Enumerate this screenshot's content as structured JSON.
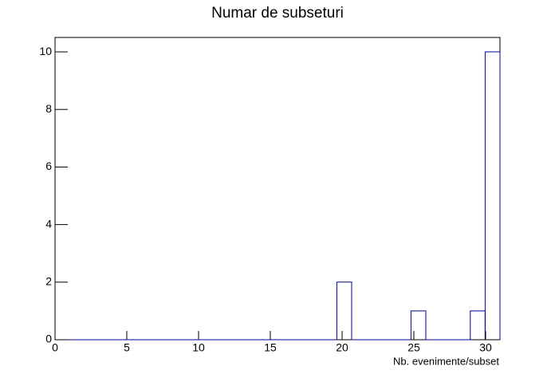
{
  "chart_data": {
    "type": "histogram",
    "title": "Numar de subseturi",
    "x_label": "Nb. evenimente/subset",
    "bins": [
      0,
      1.0333,
      2.0667,
      3.1,
      4.1333,
      5.1667,
      6.2,
      7.2333,
      8.2667,
      9.3,
      10.3333,
      11.3667,
      12.4,
      13.4333,
      14.4667,
      15.5,
      16.5333,
      17.5667,
      18.6,
      19.6333,
      20.6667,
      21.7,
      22.7333,
      23.7667,
      24.8,
      25.8333,
      26.8667,
      27.9,
      28.9333,
      29.9667,
      31
    ],
    "values": [
      0,
      0,
      0,
      0,
      0,
      0,
      0,
      0,
      0,
      0,
      0,
      0,
      0,
      0,
      0,
      0,
      0,
      0,
      0,
      2,
      0,
      0,
      0,
      0,
      1,
      0,
      0,
      0,
      1,
      10
    ],
    "color": "#000099",
    "xlim": [
      0,
      31
    ],
    "xticks": [
      0,
      5,
      10,
      15,
      20,
      25,
      30
    ],
    "ylim": [
      0,
      10.5
    ],
    "yticks": [
      0,
      2,
      4,
      6,
      8,
      10
    ]
  }
}
